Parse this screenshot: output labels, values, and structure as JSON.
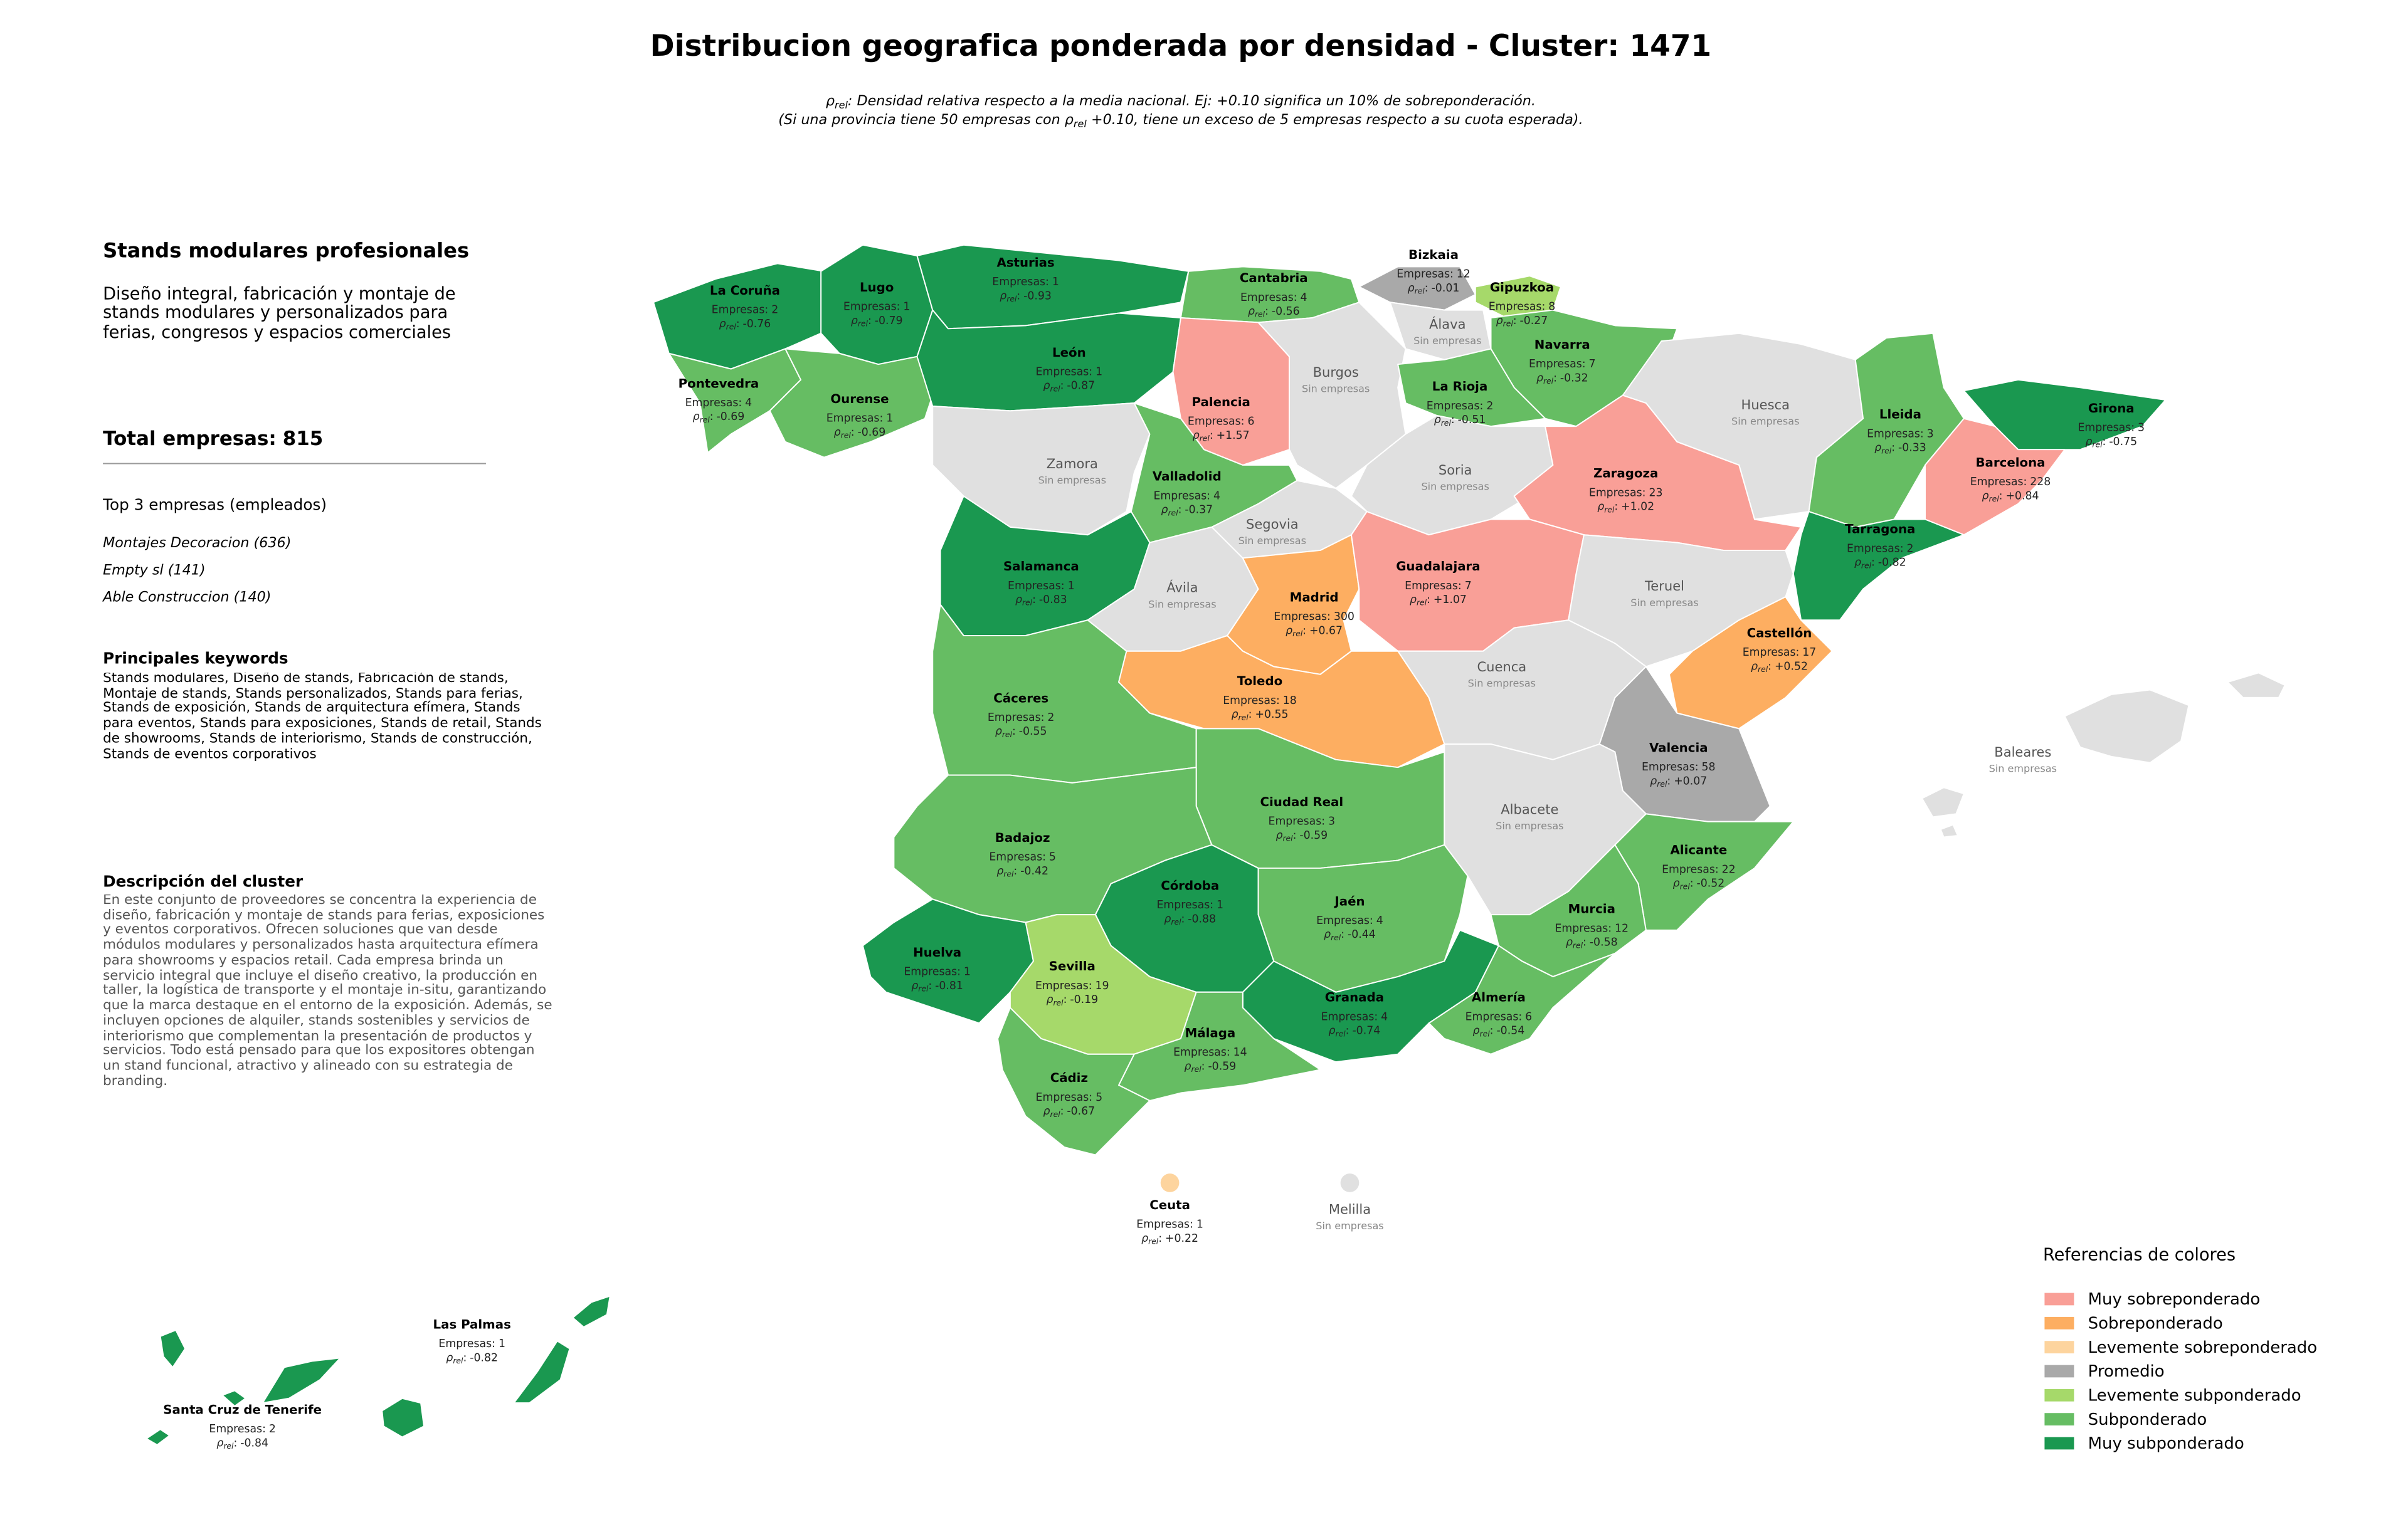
{
  "header": {
    "title": "Distribucion geografica ponderada por densidad - Cluster: 1471",
    "note": [
      [
        "ρ",
        "rel",
        ": Densidad relativa respecto a la media nacional. Ej: +0.10 significa un 10% de sobreponderación."
      ],
      [
        "(Si una provincia tiene 50 empresas con ρ",
        "rel",
        " +0.10, tiene un exceso de 5 empresas respecto a su cuota esperada)."
      ]
    ]
  },
  "sidebar": {
    "heading": "Stands modulares profesionales",
    "subtitle": "Diseño integral, fabricación y montaje de stands modulares y personalizados para ferias, congresos y espacios comerciales",
    "total_label": "Total empresas:",
    "total": 815,
    "top_title": "Top 3 empresas (empleados)",
    "top": [
      "Montajes Decoracion (636)",
      "Empty sl (141)",
      "Able Construccion (140)"
    ],
    "keywords_title": "Principales keywords",
    "keywords": "Stands modulares, Diseño de stands, Fabricación de stands, Montaje de stands, Stands personalizados, Stands para ferias, Stands de exposición, Stands de arquitectura efímera, Stands para eventos, Stands para exposiciones, Stands de retail, Stands de showrooms, Stands de interiorismo, Stands de construcción, Stands de eventos corporativos",
    "description_title": "Descripción del cluster",
    "description": "En este conjunto de proveedores se concentra la experiencia de diseño, fabricación y montaje de stands para ferias, exposiciones y eventos corporativos. Ofrecen soluciones que van desde módulos modulares y personalizados hasta arquitectura efímera para showrooms y espacios retail. Cada empresa brinda un servicio integral que incluye el diseño creativo, la producción en taller, la logística de transporte y el montaje in-situ, garantizando que la marca destaque en el entorno de la exposición. Además, se incluyen opciones de alquiler, stands sostenibles y servicios de interiorismo que complementan la presentación de productos y servicios. Todo está pensado para que los expositores obtengan un stand funcional, atractivo y alineado con su estrategia de branding."
  },
  "map": {
    "no_data_color": "#e0e0e0",
    "no_data_label": "Sin empresas",
    "count_prefix": "Empresas:",
    "rho_symbol": "ρ",
    "rho_subscript": "rel",
    "rho_suffix": ":",
    "provinces": [
      {
        "name": "La Coruña",
        "count": 2,
        "rho": -0.76,
        "color": "#1a9850"
      },
      {
        "name": "Lugo",
        "count": 1,
        "rho": -0.79,
        "color": "#1a9850"
      },
      {
        "name": "Asturias",
        "count": 1,
        "rho": -0.93,
        "color": "#1a9850"
      },
      {
        "name": "Cantabria",
        "count": 4,
        "rho": -0.56,
        "color": "#66bd63"
      },
      {
        "name": "Bizkaia",
        "count": 12,
        "rho": -0.01,
        "color": "#a9a9a9"
      },
      {
        "name": "Gipuzkoa",
        "count": 8,
        "rho": -0.27,
        "color": "#a6d96a"
      },
      {
        "name": "Álava"
      },
      {
        "name": "Navarra",
        "count": 7,
        "rho": -0.32,
        "color": "#66bd63"
      },
      {
        "name": "Pontevedra",
        "count": 4,
        "rho": -0.69,
        "color": "#66bd63"
      },
      {
        "name": "Ourense",
        "count": 1,
        "rho": -0.69,
        "color": "#66bd63"
      },
      {
        "name": "León",
        "count": 1,
        "rho": -0.87,
        "color": "#1a9850"
      },
      {
        "name": "Palencia",
        "count": 6,
        "rho": 1.57,
        "rho_label": "+1.57",
        "color": "#f99f97"
      },
      {
        "name": "Burgos"
      },
      {
        "name": "La Rioja",
        "count": 2,
        "rho": -0.51,
        "color": "#66bd63"
      },
      {
        "name": "Huesca"
      },
      {
        "name": "Lleida",
        "count": 3,
        "rho": -0.33,
        "color": "#66bd63"
      },
      {
        "name": "Girona",
        "count": 3,
        "rho": -0.75,
        "color": "#1a9850"
      },
      {
        "name": "Zamora"
      },
      {
        "name": "Valladolid",
        "count": 4,
        "rho": -0.37,
        "color": "#66bd63"
      },
      {
        "name": "Soria"
      },
      {
        "name": "Zaragoza",
        "count": 23,
        "rho": 1.02,
        "rho_label": "+1.02",
        "color": "#f99f97"
      },
      {
        "name": "Barcelona",
        "count": 228,
        "rho": 0.84,
        "rho_label": "+0.84",
        "color": "#f99f97"
      },
      {
        "name": "Tarragona",
        "count": 2,
        "rho": -0.82,
        "color": "#1a9850"
      },
      {
        "name": "Segovia"
      },
      {
        "name": "Salamanca",
        "count": 1,
        "rho": -0.83,
        "color": "#1a9850"
      },
      {
        "name": "Ávila"
      },
      {
        "name": "Madrid",
        "count": 300,
        "rho": 0.67,
        "rho_label": "+0.67",
        "color": "#fdae61"
      },
      {
        "name": "Guadalajara",
        "count": 7,
        "rho": 1.07,
        "rho_label": "+1.07",
        "color": "#f99f97"
      },
      {
        "name": "Teruel"
      },
      {
        "name": "Castellón",
        "count": 17,
        "rho": 0.52,
        "rho_label": "+0.52",
        "color": "#fdae61"
      },
      {
        "name": "Cuenca"
      },
      {
        "name": "Toledo",
        "count": 18,
        "rho": 0.55,
        "rho_label": "+0.55",
        "color": "#fdae61"
      },
      {
        "name": "Cáceres",
        "count": 2,
        "rho": -0.55,
        "color": "#66bd63"
      },
      {
        "name": "Valencia",
        "count": 58,
        "rho": 0.07,
        "rho_label": "+0.07",
        "color": "#a9a9a9"
      },
      {
        "name": "Ciudad Real",
        "count": 3,
        "rho": -0.59,
        "color": "#66bd63"
      },
      {
        "name": "Albacete"
      },
      {
        "name": "Badajoz",
        "count": 5,
        "rho": -0.42,
        "color": "#66bd63"
      },
      {
        "name": "Alicante",
        "count": 22,
        "rho": -0.52,
        "color": "#66bd63"
      },
      {
        "name": "Córdoba",
        "count": 1,
        "rho": -0.88,
        "color": "#1a9850"
      },
      {
        "name": "Jaén",
        "count": 4,
        "rho": -0.44,
        "color": "#66bd63"
      },
      {
        "name": "Murcia",
        "count": 12,
        "rho": -0.58,
        "color": "#66bd63"
      },
      {
        "name": "Huelva",
        "count": 1,
        "rho": -0.81,
        "color": "#1a9850"
      },
      {
        "name": "Sevilla",
        "count": 19,
        "rho": -0.19,
        "color": "#a6d96a"
      },
      {
        "name": "Granada",
        "count": 4,
        "rho": -0.74,
        "color": "#1a9850"
      },
      {
        "name": "Almería",
        "count": 6,
        "rho": -0.54,
        "color": "#66bd63"
      },
      {
        "name": "Málaga",
        "count": 14,
        "rho": -0.59,
        "color": "#66bd63"
      },
      {
        "name": "Cádiz",
        "count": 5,
        "rho": -0.67,
        "color": "#66bd63"
      },
      {
        "name": "Baleares"
      },
      {
        "name": "Ceuta",
        "count": 1,
        "rho": 0.22,
        "rho_label": "+0.22",
        "color": "#fdd49e"
      },
      {
        "name": "Melilla"
      },
      {
        "name": "Las Palmas",
        "count": 1,
        "rho": -0.82,
        "color": "#1a9850"
      },
      {
        "name": "Santa Cruz de Tenerife",
        "count": 2,
        "rho": -0.84,
        "color": "#1a9850"
      }
    ]
  },
  "legend": {
    "title": "Referencias de colores",
    "items": [
      {
        "label": "Muy sobreponderado",
        "color": "#f99f97"
      },
      {
        "label": "Sobreponderado",
        "color": "#fdae61"
      },
      {
        "label": "Levemente sobreponderado",
        "color": "#fdd49e"
      },
      {
        "label": "Promedio",
        "color": "#a9a9a9"
      },
      {
        "label": "Levemente subponderado",
        "color": "#a6d96a"
      },
      {
        "label": "Subponderado",
        "color": "#66bd63"
      },
      {
        "label": "Muy subponderado",
        "color": "#1a9850"
      }
    ]
  }
}
